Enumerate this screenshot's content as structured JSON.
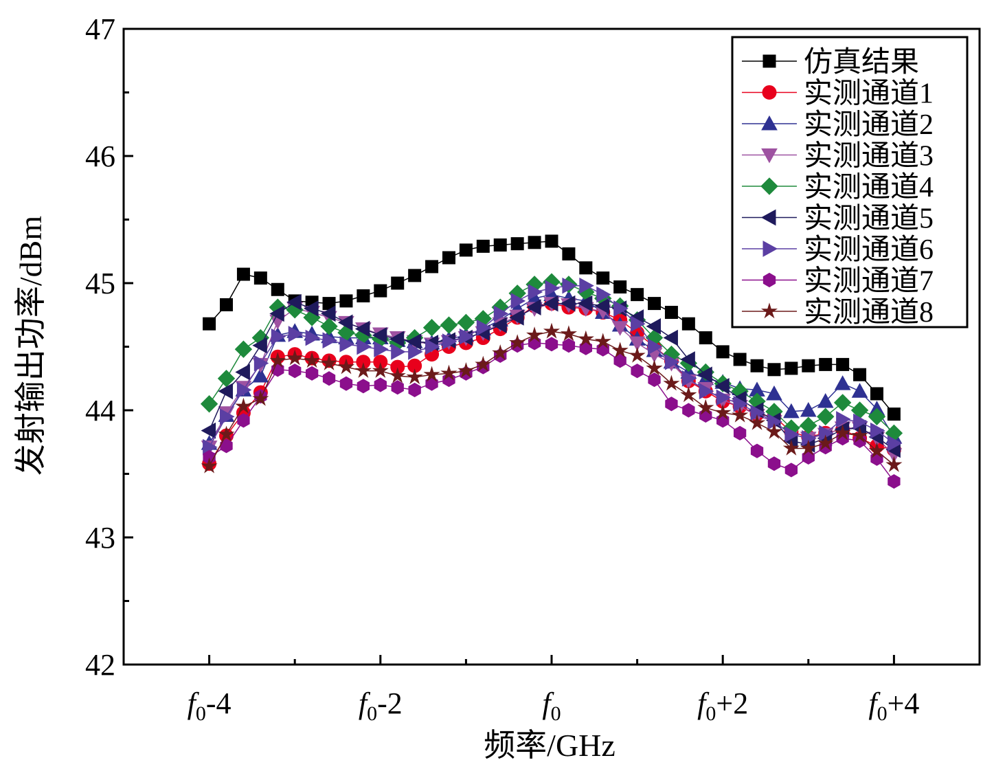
{
  "chart_data": {
    "type": "line",
    "xlabel": "频率/GHz",
    "ylabel": "发射输出功率/dBm",
    "xlim": [
      -5,
      5
    ],
    "ylim": [
      42,
      47
    ],
    "y_ticks": [
      "42",
      "43",
      "44",
      "45",
      "46",
      "47"
    ],
    "x_ticks": [
      {
        "value": -4,
        "base": "f",
        "sub": "0",
        "suffix": "-4"
      },
      {
        "value": -2,
        "base": "f",
        "sub": "0",
        "suffix": "-2"
      },
      {
        "value": 0,
        "base": "f",
        "sub": "0",
        "suffix": ""
      },
      {
        "value": 2,
        "base": "f",
        "sub": "0",
        "suffix": "+2"
      },
      {
        "value": 4,
        "base": "f",
        "sub": "0",
        "suffix": "+4"
      }
    ],
    "legend_position": "top-right",
    "x": [
      -4.0,
      -3.8,
      -3.6,
      -3.4,
      -3.2,
      -3.0,
      -2.8,
      -2.6,
      -2.4,
      -2.2,
      -2.0,
      -1.8,
      -1.6,
      -1.4,
      -1.2,
      -1.0,
      -0.8,
      -0.6,
      -0.4,
      -0.2,
      0.0,
      0.2,
      0.4,
      0.6,
      0.8,
      1.0,
      1.2,
      1.4,
      1.6,
      1.8,
      2.0,
      2.2,
      2.4,
      2.6,
      2.8,
      3.0,
      3.2,
      3.4,
      3.6,
      3.8,
      4.0
    ],
    "series": [
      {
        "name": "仿真结果",
        "color": "#000000",
        "marker": "square",
        "values": [
          44.68,
          44.83,
          45.07,
          45.04,
          44.95,
          44.86,
          44.85,
          44.84,
          44.86,
          44.9,
          44.94,
          45.0,
          45.06,
          45.13,
          45.2,
          45.26,
          45.29,
          45.3,
          45.31,
          45.32,
          45.33,
          45.23,
          45.12,
          45.04,
          44.97,
          44.91,
          44.84,
          44.77,
          44.68,
          44.57,
          44.46,
          44.4,
          44.35,
          44.32,
          44.33,
          44.35,
          44.36,
          44.36,
          44.28,
          44.13,
          43.97
        ]
      },
      {
        "name": "实测通道1",
        "color": "#e8001c",
        "marker": "circle",
        "values": [
          43.58,
          43.8,
          43.98,
          44.14,
          44.42,
          44.44,
          44.41,
          44.39,
          44.38,
          44.38,
          44.38,
          44.34,
          44.35,
          44.44,
          44.5,
          44.53,
          44.57,
          44.64,
          44.73,
          44.82,
          44.84,
          44.81,
          44.8,
          44.77,
          44.71,
          44.61,
          44.5,
          44.39,
          44.23,
          44.15,
          44.07,
          44.03,
          43.97,
          43.95,
          43.83,
          43.79,
          43.82,
          43.85,
          43.78,
          43.72,
          43.69
        ]
      },
      {
        "name": "实测通道2",
        "color": "#2e3192",
        "marker": "triangle-up",
        "values": [
          43.74,
          43.96,
          44.16,
          44.27,
          44.59,
          44.62,
          44.6,
          44.58,
          44.57,
          44.57,
          44.57,
          44.55,
          44.54,
          44.53,
          44.56,
          44.59,
          44.64,
          44.71,
          44.8,
          44.88,
          44.91,
          44.88,
          44.86,
          44.77,
          44.67,
          44.56,
          44.47,
          44.38,
          44.3,
          44.25,
          44.22,
          44.17,
          44.16,
          44.13,
          43.99,
          44.0,
          44.07,
          44.21,
          44.15,
          44.01,
          43.79
        ]
      },
      {
        "name": "实测通道3",
        "color": "#9e52a1",
        "marker": "triangle-down",
        "values": [
          43.71,
          43.98,
          44.18,
          44.36,
          44.7,
          44.8,
          44.77,
          44.73,
          44.69,
          44.64,
          44.6,
          44.57,
          44.54,
          44.52,
          44.54,
          44.57,
          44.61,
          44.68,
          44.74,
          44.8,
          44.84,
          44.83,
          44.8,
          44.78,
          44.65,
          44.53,
          44.44,
          44.37,
          44.23,
          44.17,
          44.08,
          44.03,
          43.96,
          43.91,
          43.81,
          43.78,
          43.81,
          43.86,
          43.86,
          43.78,
          43.65
        ]
      },
      {
        "name": "实测通道4",
        "color": "#1e8a3c",
        "marker": "diamond",
        "values": [
          44.05,
          44.25,
          44.48,
          44.57,
          44.81,
          44.79,
          44.73,
          44.66,
          44.61,
          44.59,
          44.56,
          44.53,
          44.57,
          44.65,
          44.67,
          44.69,
          44.72,
          44.81,
          44.92,
          44.99,
          45.01,
          44.99,
          44.93,
          44.88,
          44.82,
          44.71,
          44.57,
          44.44,
          44.37,
          44.3,
          44.21,
          44.15,
          44.07,
          43.99,
          43.86,
          43.88,
          43.95,
          44.06,
          44.0,
          43.95,
          43.82
        ]
      },
      {
        "name": "实测通道5",
        "color": "#1f1a5c",
        "marker": "triangle-left",
        "values": [
          43.84,
          44.15,
          44.3,
          44.51,
          44.76,
          44.85,
          44.8,
          44.76,
          44.69,
          44.64,
          44.59,
          44.56,
          44.54,
          44.53,
          44.55,
          44.57,
          44.61,
          44.67,
          44.73,
          44.81,
          44.84,
          44.84,
          44.84,
          44.82,
          44.8,
          44.73,
          44.66,
          44.57,
          44.4,
          44.28,
          44.19,
          44.09,
          44.0,
          43.92,
          43.76,
          43.73,
          43.78,
          43.85,
          43.86,
          43.79,
          43.69
        ]
      },
      {
        "name": "实测通道6",
        "color": "#5b3fa3",
        "marker": "triangle-right",
        "values": [
          43.71,
          43.95,
          44.16,
          44.37,
          44.58,
          44.6,
          44.57,
          44.55,
          44.52,
          44.5,
          44.48,
          44.46,
          44.46,
          44.5,
          44.54,
          44.58,
          44.65,
          44.76,
          44.86,
          44.93,
          44.96,
          44.98,
          44.98,
          44.91,
          44.8,
          44.68,
          44.5,
          44.38,
          44.25,
          44.15,
          44.1,
          44.05,
          43.98,
          43.91,
          43.81,
          43.78,
          43.82,
          43.93,
          43.91,
          43.84,
          43.74
        ]
      },
      {
        "name": "实测通道7",
        "color": "#8b0f8c",
        "marker": "hexagon",
        "values": [
          43.63,
          43.72,
          43.92,
          44.11,
          44.32,
          44.31,
          44.29,
          44.25,
          44.21,
          44.19,
          44.2,
          44.18,
          44.16,
          44.21,
          44.24,
          44.29,
          44.34,
          44.43,
          44.51,
          44.53,
          44.52,
          44.51,
          44.49,
          44.48,
          44.39,
          44.31,
          44.24,
          44.05,
          44.0,
          43.96,
          43.92,
          43.82,
          43.68,
          43.58,
          43.53,
          43.63,
          43.71,
          43.78,
          43.76,
          43.62,
          43.44
        ]
      },
      {
        "name": "实测通道8",
        "color": "#6b1a1a",
        "marker": "star",
        "values": [
          43.56,
          43.81,
          44.03,
          44.09,
          44.39,
          44.41,
          44.39,
          44.37,
          44.34,
          44.31,
          44.31,
          44.27,
          44.26,
          44.28,
          44.29,
          44.31,
          44.36,
          44.45,
          44.53,
          44.59,
          44.62,
          44.6,
          44.56,
          44.54,
          44.47,
          44.43,
          44.33,
          44.21,
          44.12,
          44.02,
          43.98,
          43.96,
          43.9,
          43.83,
          43.7,
          43.7,
          43.74,
          43.82,
          43.8,
          43.68,
          43.57
        ]
      }
    ]
  }
}
